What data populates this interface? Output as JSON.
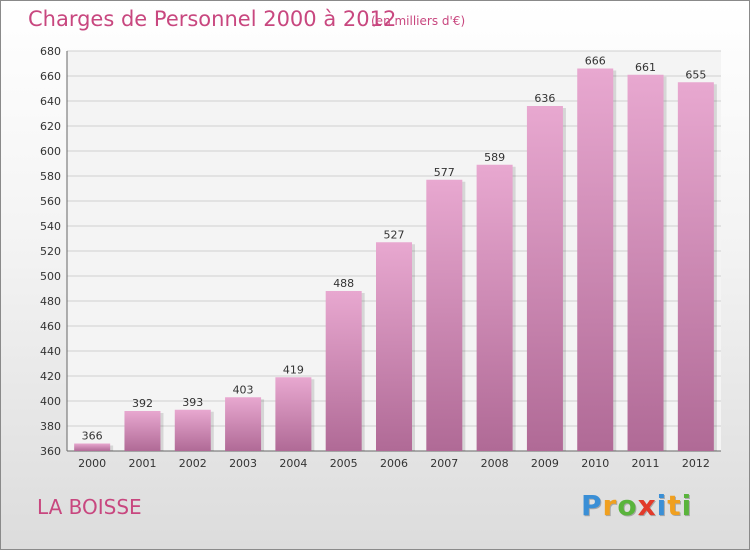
{
  "header": {
    "title": "Charges de Personnel 2000 à 2012",
    "subtitle": "(en milliers d'€)"
  },
  "footer": {
    "commune": "LA BOISSE",
    "logo_text": "Proxiti",
    "logo_letters": [
      "P",
      "r",
      "o",
      "x",
      "i",
      "t",
      "i"
    ],
    "logo_colors": [
      "#3a8fd6",
      "#f0a020",
      "#5ab43c",
      "#e23a2a",
      "#3a8fd6",
      "#f0a020",
      "#5ab43c"
    ]
  },
  "colors": {
    "title": "#c8477f",
    "bar_top": "#e8a8d0",
    "bar_bottom": "#b06a96",
    "grid": "#cfcfcf",
    "axis_text": "#333333"
  },
  "chart_data": {
    "type": "bar",
    "categories": [
      "2000",
      "2001",
      "2002",
      "2003",
      "2004",
      "2005",
      "2006",
      "2007",
      "2008",
      "2009",
      "2010",
      "2011",
      "2012"
    ],
    "values": [
      366,
      392,
      393,
      403,
      419,
      488,
      527,
      577,
      589,
      636,
      666,
      661,
      655
    ],
    "ylim": [
      360,
      680
    ],
    "yticks": [
      360,
      380,
      400,
      420,
      440,
      460,
      480,
      500,
      520,
      540,
      560,
      580,
      600,
      620,
      640,
      660,
      680
    ],
    "grid": true,
    "data_labels": true,
    "xlabel": "",
    "ylabel": ""
  }
}
